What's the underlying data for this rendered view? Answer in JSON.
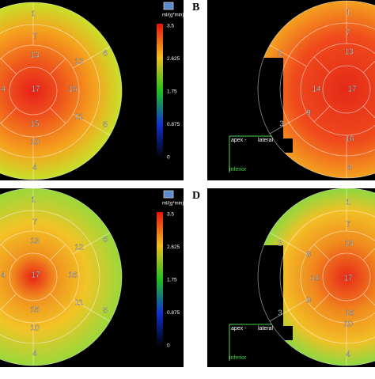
{
  "panels": [
    {
      "segments": [
        "1",
        "7",
        "13",
        "12",
        "6",
        "4",
        "17",
        "16",
        "15",
        "11",
        "5",
        "10",
        "4"
      ],
      "colorbar": {
        "unit": "ml/(g*min)",
        "ticks": [
          "3.5",
          "2.625",
          "1.75",
          "0.875",
          "0"
        ]
      }
    },
    {
      "label": "B",
      "segments": [
        "1",
        "7",
        "13",
        "2",
        "14",
        "17",
        "9",
        "3",
        "16",
        "4"
      ],
      "legend": [
        "apex -",
        "lateral",
        "inferior"
      ]
    },
    {
      "segments": [
        "1",
        "7",
        "13",
        "12",
        "6",
        "4",
        "17",
        "16",
        "15",
        "11",
        "5",
        "10",
        "4"
      ],
      "colorbar": {
        "unit": "ml/(g*min)",
        "ticks": [
          "3.5",
          "2.625",
          "1.75",
          "0.875",
          "0"
        ]
      }
    },
    {
      "label": "D",
      "segments": [
        "1",
        "7",
        "13",
        "2",
        "8",
        "14",
        "17",
        "9",
        "3",
        "16",
        "10",
        "4"
      ],
      "legend": [
        "apex -",
        "lateral",
        "inferior"
      ]
    }
  ]
}
